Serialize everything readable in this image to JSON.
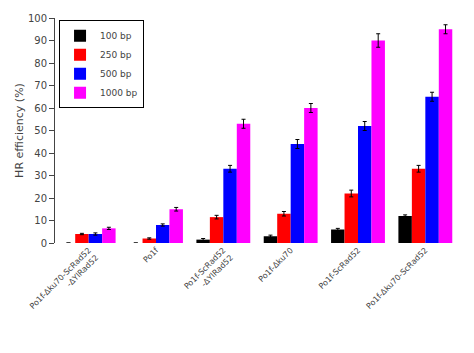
{
  "chart_data": {
    "type": "bar",
    "categories": [
      "Po1f-Δku70-ScRad52\n-ΔYlRad52",
      "Po1f",
      "Po1f-ScRad52\n-ΔYlRad52",
      "Po1f-Δku70",
      "Po1f-ScRad52",
      "Po1f-Δku70-ScRad52"
    ],
    "series": [
      {
        "name": "100 bp",
        "color": "#000000",
        "values": [
          0,
          0,
          1.5,
          3,
          6,
          12
        ],
        "errors": [
          0,
          0,
          0.5,
          0.5,
          0.5,
          0.5
        ]
      },
      {
        "name": "250 bp",
        "color": "#ff0000",
        "values": [
          4,
          2,
          11.5,
          13,
          22,
          33
        ],
        "errors": [
          0.3,
          0.3,
          0.8,
          1,
          1.5,
          1.5
        ]
      },
      {
        "name": "500 bp",
        "color": "#0000ff",
        "values": [
          4,
          8,
          33,
          44,
          52,
          65
        ],
        "errors": [
          0.5,
          0.5,
          1.5,
          2,
          2,
          2
        ]
      },
      {
        "name": "1000 bp",
        "color": "#ff00ff",
        "values": [
          6.5,
          15,
          53,
          60,
          90,
          95
        ],
        "errors": [
          0.5,
          0.8,
          2,
          2,
          3,
          2
        ]
      }
    ],
    "ylabel": "HR efficiency (%)",
    "ylim": [
      0,
      100
    ],
    "yticks": [
      0,
      10,
      20,
      30,
      40,
      50,
      60,
      70,
      80,
      90,
      100
    ],
    "grid": false,
    "legend": "upper left"
  }
}
